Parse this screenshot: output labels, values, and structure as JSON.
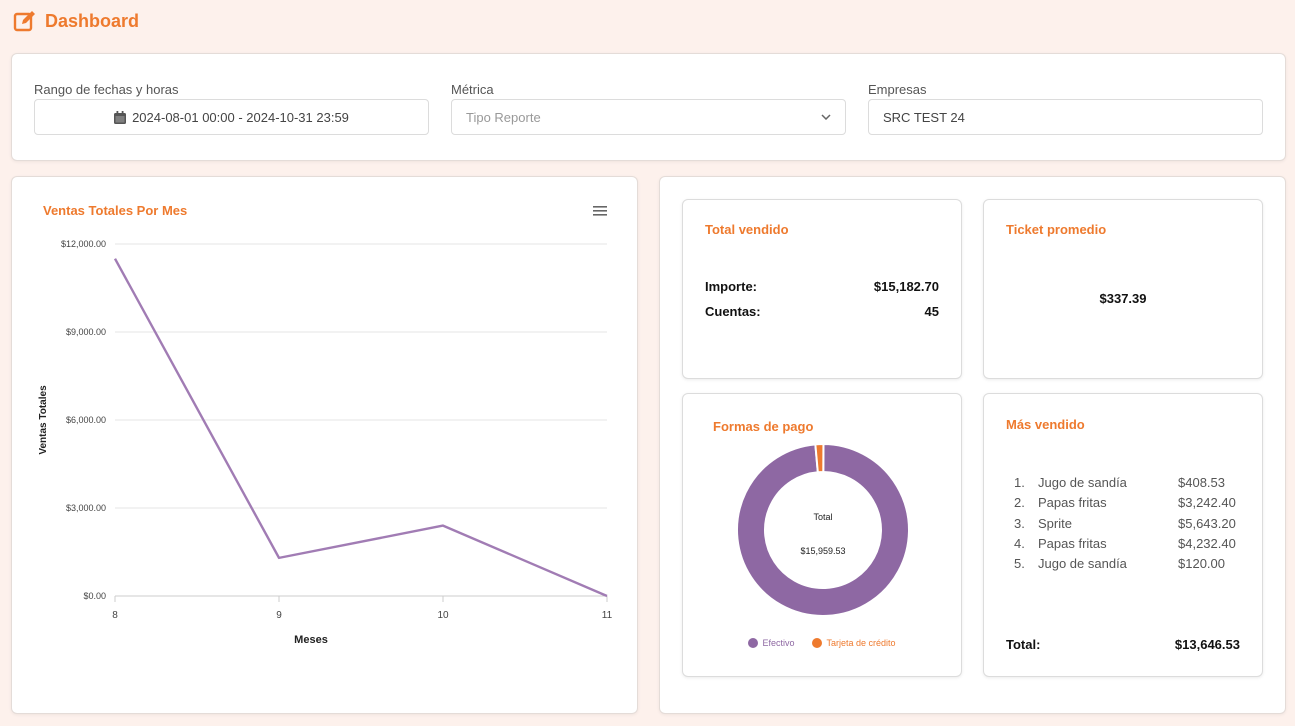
{
  "header": {
    "title": "Dashboard",
    "icon": "edit-square-icon"
  },
  "filters": {
    "date_label": "Rango de fechas y horas",
    "date_value": "2024-08-01 00:00 - 2024-10-31 23:59",
    "metric_label": "Métrica",
    "metric_placeholder": "Tipo Reporte",
    "company_label": "Empresas",
    "company_value": "SRC TEST 24"
  },
  "chart": {
    "menu_icon": "hamburger-menu-icon"
  },
  "chart_data": {
    "type": "line",
    "title": "Ventas Totales Por Mes",
    "xlabel": "Meses",
    "ylabel": "Ventas Totales",
    "categories": [
      "8",
      "9",
      "10",
      "11"
    ],
    "series": [
      {
        "values": [
          11500,
          1300,
          2400,
          0
        ]
      }
    ],
    "ylim": [
      0,
      12000
    ],
    "yticks": [
      "$0.00",
      "$3,000.00",
      "$6,000.00",
      "$9,000.00",
      "$12,000.00"
    ],
    "line_color": "#a17cb4",
    "grid": true
  },
  "total_vendido": {
    "title": "Total vendido",
    "importe_label": "Importe:",
    "importe_value": "$15,182.70",
    "cuentas_label": "Cuentas:",
    "cuentas_value": "45"
  },
  "ticket": {
    "title": "Ticket promedio",
    "value": "$337.39"
  },
  "formas_pago": {
    "title": "Formas de pago",
    "center_label": "Total",
    "center_value": "$15,959.53",
    "legend": [
      {
        "label": "Efectivo",
        "color": "#8e68a3"
      },
      {
        "label": "Tarjeta de crédito",
        "color": "#ee7a2e"
      }
    ],
    "slices": [
      {
        "label": "Efectivo",
        "share": 0.985,
        "color": "#8e68a3"
      },
      {
        "label": "Tarjeta de crédito",
        "share": 0.015,
        "color": "#ee7a2e"
      }
    ]
  },
  "mas_vendido": {
    "title": "Más vendido",
    "items": [
      {
        "n": "1.",
        "name": "Jugo de sandía",
        "value": "$408.53"
      },
      {
        "n": "2.",
        "name": "Papas fritas",
        "value": "$3,242.40"
      },
      {
        "n": "3.",
        "name": "Sprite",
        "value": "$5,643.20"
      },
      {
        "n": "4.",
        "name": "Papas fritas",
        "value": "$4,232.40"
      },
      {
        "n": "5.",
        "name": "Jugo de sandía",
        "value": "$120.00"
      }
    ],
    "total_label": "Total:",
    "total_value": "$13,646.53"
  }
}
